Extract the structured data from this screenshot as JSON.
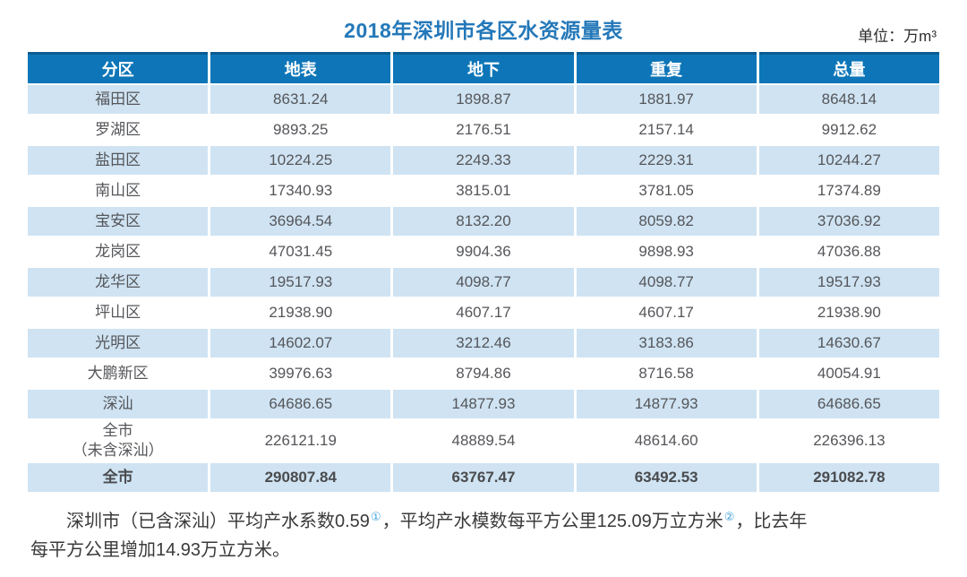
{
  "title": "2018年深圳市各区水资源量表",
  "unit_label": "单位：万m³",
  "colors": {
    "header_bg": "#0e76b8",
    "header_top_border": "#0a5c91",
    "row_alt_bg": "#cfe3f2",
    "title_color": "#2478b9",
    "footnote_marker_color": "#41a0d9"
  },
  "chart_data": {
    "type": "table",
    "title": "2018年深圳市各区水资源量表",
    "unit": "万m³",
    "columns": [
      "分区",
      "地表",
      "地下",
      "重复",
      "总量"
    ],
    "rows": [
      [
        "福田区",
        "8631.24",
        "1898.87",
        "1881.97",
        "8648.14"
      ],
      [
        "罗湖区",
        "9893.25",
        "2176.51",
        "2157.14",
        "9912.62"
      ],
      [
        "盐田区",
        "10224.25",
        "2249.33",
        "2229.31",
        "10244.27"
      ],
      [
        "南山区",
        "17340.93",
        "3815.01",
        "3781.05",
        "17374.89"
      ],
      [
        "宝安区",
        "36964.54",
        "8132.20",
        "8059.82",
        "37036.92"
      ],
      [
        "龙岗区",
        "47031.45",
        "9904.36",
        "9898.93",
        "47036.88"
      ],
      [
        "龙华区",
        "19517.93",
        "4098.77",
        "4098.77",
        "19517.93"
      ],
      [
        "坪山区",
        "21938.90",
        "4607.17",
        "4607.17",
        "21938.90"
      ],
      [
        "光明区",
        "14602.07",
        "3212.46",
        "3183.86",
        "14630.67"
      ],
      [
        "大鹏新区",
        "39976.63",
        "8794.86",
        "8716.58",
        "40054.91"
      ],
      [
        "深汕",
        "64686.65",
        "14877.93",
        "14877.93",
        "64686.65"
      ],
      [
        "全市\n（未含深汕）",
        "226121.19",
        "48889.54",
        "48614.60",
        "226396.13"
      ],
      [
        "全市",
        "290807.84",
        "63767.47",
        "63492.53",
        "291082.78"
      ]
    ]
  },
  "footnote": {
    "part1": "深圳市（已含深汕）平均产水系数0.59",
    "marker1": "①",
    "part2": "，平均产水模数每平方公里125.09万立方米",
    "marker2": "②",
    "part3": "，比去年",
    "part4": "每平方公里增加14.93万立方米。"
  }
}
